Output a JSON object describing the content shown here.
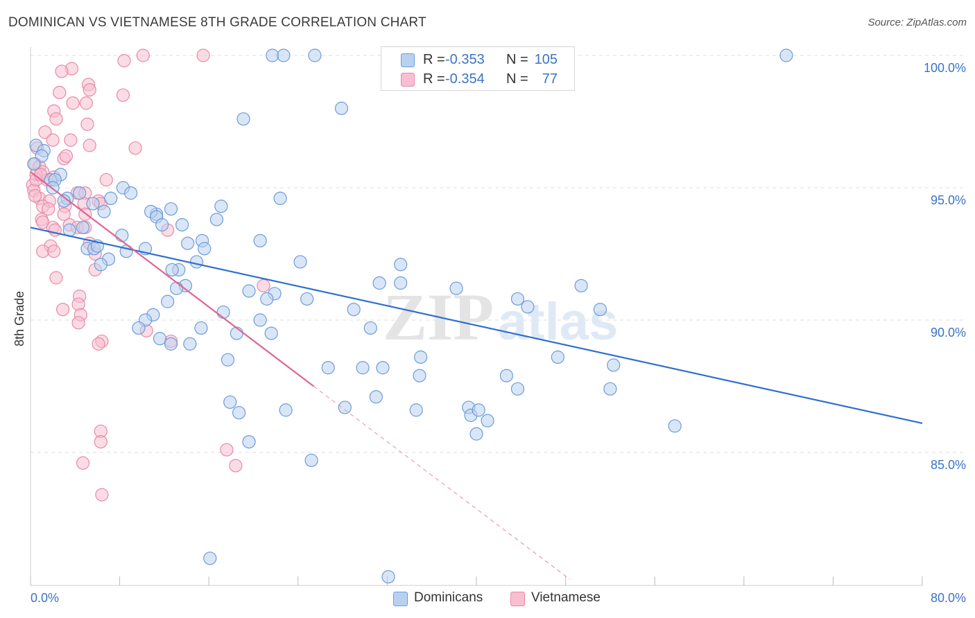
{
  "header": {
    "title": "DOMINICAN VS VIETNAMESE 8TH GRADE CORRELATION CHART",
    "source": "Source: ZipAtlas.com"
  },
  "watermark": {
    "zip": "ZIP",
    "atlas": "atlas"
  },
  "colors": {
    "blue_fill": "#b9d1f1",
    "blue_stroke": "#6e9bd8",
    "blue_line": "#2e6fce",
    "pink_fill": "#f7bfd0",
    "pink_stroke": "#e889a8",
    "pink_line": "#e0648f",
    "tick_text": "#3b73c4",
    "grid": "#dcdcdc"
  },
  "legend": {
    "rows": [
      {
        "r_label": "R =",
        "r_value": "-0.353",
        "n_label": "N =",
        "n_value": "105",
        "color": "#b9d1f1"
      },
      {
        "r_label": "R =",
        "r_value": "-0.354",
        "n_label": "N =",
        "n_value": "77",
        "color": "#f7bfd0"
      }
    ]
  },
  "bottom_legend": {
    "dominicans": "Dominicans",
    "vietnamese": "Vietnamese"
  },
  "chart_data": {
    "type": "scatter",
    "title": "DOMINICAN VS VIETNAMESE 8TH GRADE CORRELATION CHART",
    "xlabel": "",
    "ylabel": "8th Grade",
    "xlim": [
      0,
      80
    ],
    "ylim": [
      80.2,
      100.5
    ],
    "x_tick_labels": [
      "0.0%",
      "80.0%"
    ],
    "y_ticks": [
      85,
      90,
      95,
      100
    ],
    "y_tick_labels": [
      "85.0%",
      "90.0%",
      "95.0%",
      "100.0%"
    ],
    "grid": true,
    "legend_position": "top-center",
    "series": [
      {
        "name": "Dominicans",
        "r": -0.353,
        "n": 105,
        "trend": {
          "x": [
            0,
            80
          ],
          "y": [
            93.5,
            86.1
          ]
        },
        "points": [
          [
            0.5,
            96.6
          ],
          [
            1.2,
            96.4
          ],
          [
            1.0,
            96.2
          ],
          [
            2.7,
            95.5
          ],
          [
            1.8,
            95.3
          ],
          [
            2.2,
            95.3
          ],
          [
            2.0,
            95.0
          ],
          [
            8.3,
            95.0
          ],
          [
            7.2,
            94.6
          ],
          [
            9.0,
            94.8
          ],
          [
            3.3,
            94.6
          ],
          [
            4.4,
            94.8
          ],
          [
            3.0,
            94.5
          ],
          [
            5.6,
            94.4
          ],
          [
            11.3,
            94.0
          ],
          [
            10.8,
            94.1
          ],
          [
            6.6,
            94.1
          ],
          [
            11.3,
            93.9
          ],
          [
            12.6,
            94.2
          ],
          [
            17.1,
            94.3
          ],
          [
            22.4,
            94.6
          ],
          [
            16.7,
            93.8
          ],
          [
            4.7,
            93.5
          ],
          [
            3.5,
            93.4
          ],
          [
            11.8,
            93.6
          ],
          [
            8.2,
            93.2
          ],
          [
            13.6,
            93.6
          ],
          [
            20.6,
            93.0
          ],
          [
            15.4,
            93.0
          ],
          [
            14.1,
            92.9
          ],
          [
            5.1,
            92.7
          ],
          [
            5.7,
            92.7
          ],
          [
            6.0,
            92.8
          ],
          [
            10.3,
            92.7
          ],
          [
            8.6,
            92.6
          ],
          [
            15.6,
            92.7
          ],
          [
            7.0,
            92.3
          ],
          [
            6.3,
            92.1
          ],
          [
            14.9,
            92.2
          ],
          [
            24.2,
            92.2
          ],
          [
            13.3,
            91.9
          ],
          [
            12.7,
            91.9
          ],
          [
            33.2,
            92.1
          ],
          [
            13.9,
            91.3
          ],
          [
            13.1,
            91.2
          ],
          [
            19.6,
            91.1
          ],
          [
            21.9,
            91.0
          ],
          [
            31.3,
            91.4
          ],
          [
            33.2,
            91.4
          ],
          [
            38.2,
            91.2
          ],
          [
            49.4,
            91.3
          ],
          [
            12.3,
            90.7
          ],
          [
            21.2,
            90.8
          ],
          [
            24.8,
            90.8
          ],
          [
            17.3,
            90.3
          ],
          [
            29.0,
            90.4
          ],
          [
            43.7,
            90.8
          ],
          [
            44.6,
            90.5
          ],
          [
            51.1,
            90.4
          ],
          [
            11.0,
            90.2
          ],
          [
            10.3,
            90.0
          ],
          [
            20.6,
            90.0
          ],
          [
            9.7,
            89.7
          ],
          [
            15.3,
            89.7
          ],
          [
            18.5,
            89.5
          ],
          [
            21.6,
            89.5
          ],
          [
            30.5,
            89.7
          ],
          [
            11.6,
            89.3
          ],
          [
            12.6,
            89.1
          ],
          [
            14.3,
            89.1
          ],
          [
            17.7,
            88.5
          ],
          [
            26.7,
            88.2
          ],
          [
            29.8,
            88.2
          ],
          [
            31.6,
            88.2
          ],
          [
            35.0,
            88.6
          ],
          [
            47.3,
            88.6
          ],
          [
            52.3,
            88.3
          ],
          [
            34.9,
            87.9
          ],
          [
            42.7,
            87.9
          ],
          [
            43.7,
            87.4
          ],
          [
            52.0,
            87.4
          ],
          [
            31.0,
            87.1
          ],
          [
            17.9,
            86.9
          ],
          [
            18.7,
            86.5
          ],
          [
            22.9,
            86.6
          ],
          [
            28.2,
            86.7
          ],
          [
            34.6,
            86.6
          ],
          [
            39.3,
            86.7
          ],
          [
            39.5,
            86.4
          ],
          [
            40.2,
            86.6
          ],
          [
            41.0,
            86.2
          ],
          [
            57.8,
            86.0
          ],
          [
            40.0,
            85.7
          ],
          [
            19.6,
            85.4
          ],
          [
            25.2,
            84.7
          ],
          [
            16.1,
            81.0
          ],
          [
            32.1,
            80.3
          ],
          [
            21.7,
            100.0
          ],
          [
            22.7,
            100.0
          ],
          [
            25.5,
            100.0
          ],
          [
            32.3,
            100.0
          ],
          [
            67.8,
            100.0
          ],
          [
            27.9,
            98.0
          ],
          [
            19.1,
            97.6
          ],
          [
            0.3,
            95.9
          ]
        ]
      },
      {
        "name": "Vietnamese",
        "r": -0.354,
        "n": 77,
        "trend": {
          "x": [
            0,
            25.4
          ],
          "y": [
            95.6,
            87.5
          ]
        },
        "trend_extension": {
          "x": [
            25.4,
            48.4
          ],
          "y": [
            87.5,
            80.2
          ]
        },
        "points": [
          [
            10.1,
            100.0
          ],
          [
            15.5,
            100.0
          ],
          [
            8.4,
            99.8
          ],
          [
            3.7,
            99.5
          ],
          [
            2.8,
            99.4
          ],
          [
            5.2,
            98.9
          ],
          [
            5.3,
            98.7
          ],
          [
            2.6,
            98.6
          ],
          [
            8.3,
            98.5
          ],
          [
            3.8,
            98.2
          ],
          [
            5.0,
            98.2
          ],
          [
            2.1,
            97.9
          ],
          [
            2.3,
            97.6
          ],
          [
            5.1,
            97.4
          ],
          [
            1.3,
            97.1
          ],
          [
            2.0,
            96.8
          ],
          [
            3.6,
            96.8
          ],
          [
            5.3,
            96.6
          ],
          [
            9.4,
            96.5
          ],
          [
            0.6,
            96.5
          ],
          [
            3.0,
            96.1
          ],
          [
            3.2,
            96.2
          ],
          [
            0.4,
            95.9
          ],
          [
            0.8,
            95.8
          ],
          [
            1.1,
            95.6
          ],
          [
            0.5,
            95.5
          ],
          [
            1.5,
            95.3
          ],
          [
            2.1,
            95.4
          ],
          [
            0.2,
            95.1
          ],
          [
            0.3,
            94.9
          ],
          [
            0.8,
            94.6
          ],
          [
            1.7,
            94.5
          ],
          [
            0.4,
            94.7
          ],
          [
            6.8,
            95.3
          ],
          [
            4.2,
            94.8
          ],
          [
            4.9,
            94.8
          ],
          [
            6.1,
            94.5
          ],
          [
            3.1,
            94.3
          ],
          [
            4.8,
            94.4
          ],
          [
            6.3,
            94.4
          ],
          [
            1.1,
            94.3
          ],
          [
            1.6,
            94.2
          ],
          [
            3.0,
            94.0
          ],
          [
            4.9,
            94.0
          ],
          [
            1.0,
            93.8
          ],
          [
            1.1,
            93.7
          ],
          [
            3.5,
            93.6
          ],
          [
            2.0,
            93.5
          ],
          [
            2.2,
            93.4
          ],
          [
            4.2,
            93.5
          ],
          [
            4.9,
            93.5
          ],
          [
            12.3,
            93.4
          ],
          [
            1.8,
            92.8
          ],
          [
            5.3,
            92.9
          ],
          [
            1.1,
            92.6
          ],
          [
            2.1,
            92.6
          ],
          [
            5.8,
            92.5
          ],
          [
            5.8,
            91.9
          ],
          [
            2.3,
            91.6
          ],
          [
            20.9,
            91.3
          ],
          [
            4.4,
            90.9
          ],
          [
            4.3,
            90.6
          ],
          [
            2.9,
            90.4
          ],
          [
            4.5,
            90.2
          ],
          [
            4.3,
            89.9
          ],
          [
            10.4,
            89.6
          ],
          [
            6.4,
            89.2
          ],
          [
            6.1,
            89.1
          ],
          [
            12.6,
            89.2
          ],
          [
            6.3,
            85.8
          ],
          [
            6.3,
            85.4
          ],
          [
            17.6,
            85.1
          ],
          [
            4.7,
            84.6
          ],
          [
            18.4,
            84.5
          ],
          [
            6.4,
            83.4
          ],
          [
            0.5,
            95.3
          ],
          [
            0.9,
            95.5
          ]
        ]
      }
    ]
  }
}
